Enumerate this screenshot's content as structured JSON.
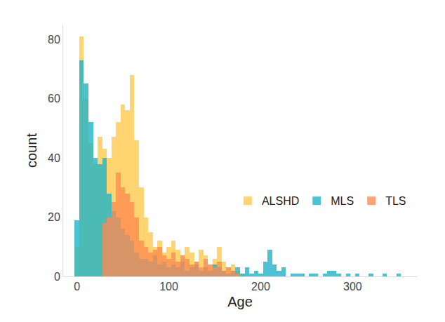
{
  "chart_data": {
    "type": "histogram",
    "x_label": "Age",
    "y_label": "count",
    "bins": [
      -2.5,
      2.5,
      7.5,
      12.5,
      17.5,
      22.5,
      27.5,
      32.5,
      37.5,
      42.5,
      47.5,
      52.5,
      57.5,
      62.5,
      67.5,
      72.5,
      77.5,
      82.5,
      87.5,
      92.5,
      97.5,
      102.5,
      107.5,
      112.5,
      117.5,
      122.5,
      127.5,
      132.5,
      137.5,
      142.5,
      147.5,
      152.5,
      157.5,
      162.5,
      167.5,
      172.5,
      177.5,
      182.5,
      187.5,
      192.5,
      197.5,
      202.5,
      207.5,
      212.5,
      217.5,
      222.5,
      227.5,
      232.5,
      237.5,
      242.5,
      247.5,
      252.5,
      257.5,
      262.5,
      267.5,
      272.5,
      277.5,
      282.5,
      287.5,
      292.5,
      297.5,
      302.5,
      307.5,
      312.5,
      317.5,
      322.5,
      327.5,
      332.5,
      337.5,
      342.5,
      347.5,
      352.5,
      357.5
    ],
    "series": [
      {
        "name": "ALSHD",
        "color": "#FFC94A",
        "values": [
          10,
          81,
          60,
          45,
          38,
          47,
          43,
          40,
          47,
          52,
          58,
          56,
          68,
          46,
          30,
          20,
          15,
          10,
          12,
          8,
          10,
          12,
          9,
          7,
          10,
          8,
          5,
          9,
          7,
          4,
          6,
          10,
          5,
          3,
          4,
          2,
          1,
          0,
          0,
          0,
          0,
          0,
          0,
          0,
          0,
          0,
          0,
          0,
          0,
          0,
          0,
          0,
          0,
          0,
          0,
          0,
          0,
          0,
          0,
          0,
          0,
          0,
          0,
          0,
          0,
          0,
          0,
          0,
          0,
          0,
          0,
          0
        ]
      },
      {
        "name": "MLS",
        "color": "#1BB3C9",
        "values": [
          19,
          73,
          65,
          52,
          40,
          38,
          40,
          28,
          22,
          20,
          16,
          14,
          12,
          8,
          6,
          6,
          5,
          7,
          4,
          5,
          3,
          4,
          3,
          5,
          2,
          3,
          4,
          2,
          3,
          2,
          4,
          3,
          2,
          1,
          2,
          3,
          1,
          3,
          1,
          2,
          1,
          5,
          9,
          4,
          2,
          3,
          0,
          1,
          1,
          1,
          0,
          1,
          1,
          0,
          1,
          2,
          2,
          1,
          0,
          1,
          0,
          1,
          0,
          0,
          1,
          0,
          0,
          1,
          0,
          0,
          1,
          0
        ]
      },
      {
        "name": "TLS",
        "color": "#FF8A50",
        "values": [
          0,
          0,
          0,
          0,
          0,
          0,
          18,
          20,
          25,
          35,
          30,
          28,
          25,
          20,
          12,
          10,
          8,
          9,
          10,
          7,
          6,
          8,
          5,
          7,
          6,
          4,
          5,
          3,
          6,
          4,
          3,
          5,
          2,
          3,
          2,
          1,
          0,
          0,
          0,
          0,
          0,
          0,
          0,
          0,
          0,
          0,
          0,
          0,
          0,
          0,
          0,
          0,
          0,
          0,
          0,
          0,
          0,
          0,
          0,
          0,
          0,
          0,
          0,
          0,
          0,
          0,
          0,
          0,
          0,
          0,
          0,
          0
        ]
      }
    ],
    "xlim": [
      -15,
      370
    ],
    "xticks": [
      0,
      100,
      200,
      300
    ],
    "ylim": [
      0,
      85
    ],
    "yticks": [
      0,
      20,
      40,
      60,
      80
    ],
    "grid": false,
    "legend": "right"
  }
}
